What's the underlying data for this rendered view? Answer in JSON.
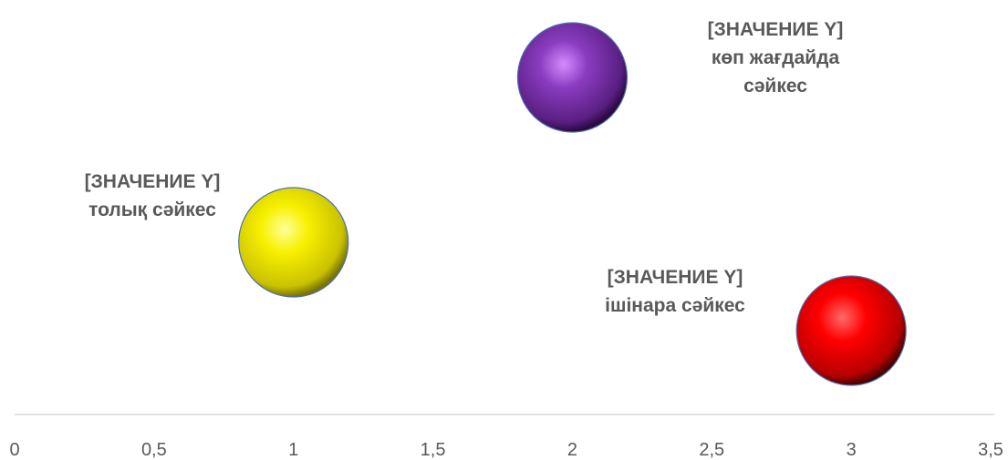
{
  "chart_data": {
    "type": "scatter",
    "subtype": "bubble",
    "title": "",
    "xlabel": "",
    "ylabel": "",
    "xlim": [
      0,
      3.5
    ],
    "x_ticks": [
      "0",
      "0,5",
      "1",
      "1,5",
      "2",
      "2,5",
      "3",
      "3,5"
    ],
    "x_tick_values": [
      0,
      0.5,
      1,
      1.5,
      2,
      2.5,
      3,
      3.5
    ],
    "y_axis_visible": false,
    "grid": false,
    "legend": "none",
    "points": [
      {
        "x": 1,
        "y": 2,
        "color": "#f5f000",
        "label_lines": [
          "[ЗНАЧЕНИЕ Y]",
          "толық сәйкес"
        ],
        "label_position": "left"
      },
      {
        "x": 2,
        "y": 3,
        "color": "#7a2fa8",
        "label_lines": [
          "[ЗНАЧЕНИЕ Y]",
          "көп жағдайда",
          "сәйкес"
        ],
        "label_position": "right"
      },
      {
        "x": 3,
        "y": 1,
        "color": "#e00000",
        "label_lines": [
          "[ЗНАЧЕНИЕ Y]",
          "ішінара сәйкес"
        ],
        "label_position": "left"
      }
    ]
  }
}
